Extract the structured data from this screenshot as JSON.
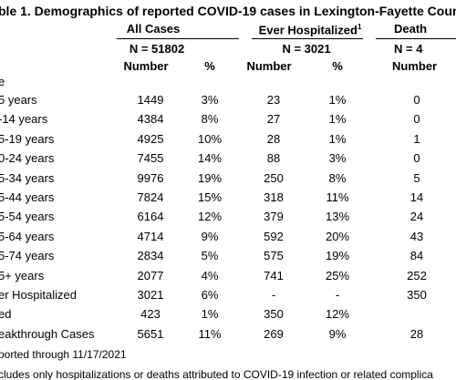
{
  "title": "ble 1. Demographics of reported COVID-19 cases in Lexington-Fayette Coun",
  "groups": [
    "All Cases",
    "Ever Hospitalized",
    "Death"
  ],
  "groups_note": "1",
  "group_n": [
    "N = 51802",
    "N = 3021",
    "N = 4"
  ],
  "columns": [
    "Number",
    "%",
    "Number",
    "%",
    "Number"
  ],
  "section": "e",
  "rows": [
    [
      "5 years",
      "1449",
      "3%",
      "23",
      "1%",
      "0"
    ],
    [
      "-14 years",
      "4384",
      "8%",
      "27",
      "1%",
      "0"
    ],
    [
      "5-19 years",
      "4925",
      "10%",
      "28",
      "1%",
      "1"
    ],
    [
      "0-24 years",
      "7455",
      "14%",
      "88",
      "3%",
      "0"
    ],
    [
      "5-34 years",
      "9976",
      "19%",
      "250",
      "8%",
      "5"
    ],
    [
      "5-44 years",
      "7824",
      "15%",
      "318",
      "11%",
      "14"
    ],
    [
      "5-54 years",
      "6164",
      "12%",
      "379",
      "13%",
      "24"
    ],
    [
      "5-64 years",
      "4714",
      "9%",
      "592",
      "20%",
      "43"
    ],
    [
      "5-74 years",
      "2834",
      "5%",
      "575",
      "19%",
      "84"
    ],
    [
      "5+ years",
      "2077",
      "4%",
      "741",
      "25%",
      "252"
    ],
    [
      "er Hospitalized",
      "3021",
      "6%",
      "-",
      "-",
      "350"
    ],
    [
      "ed",
      "423",
      "1%",
      "350",
      "12%"
    ],
    [
      "eakthrough Cases",
      "5651",
      "11%",
      "269",
      "9%",
      "28"
    ]
  ],
  "footnotes": [
    "ported through 11/17/2021",
    "cludes only hospitalizations or deaths attributed to COVID-19 infection or related complica"
  ]
}
